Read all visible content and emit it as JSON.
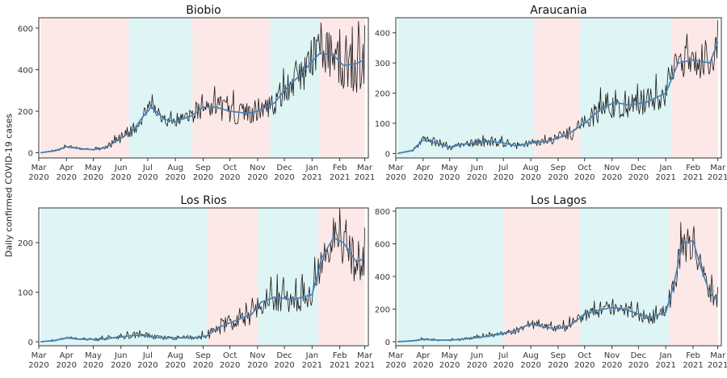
{
  "figure": {
    "ylabel": "Daily confirmed COVID-19 cases",
    "colors": {
      "pink": "#fde8e8",
      "cyan": "#def4f5",
      "raw": "#1a1a1a",
      "smooth": "#4682b4",
      "frame": "#333333"
    }
  },
  "chart_data": [
    {
      "type": "line",
      "title": "Biobio",
      "ylim": [
        -25,
        650
      ],
      "yticks": [
        0,
        200,
        400,
        600
      ],
      "xlim": [
        "2020-03-01",
        "2021-03-05"
      ],
      "xticks": [
        {
          "date": "2020-03-01",
          "label": "Mar\n2020"
        },
        {
          "date": "2020-04-01",
          "label": "Apr\n2020"
        },
        {
          "date": "2020-05-01",
          "label": "May\n2020"
        },
        {
          "date": "2020-06-01",
          "label": "Jun\n2020"
        },
        {
          "date": "2020-07-01",
          "label": "Jul\n2020"
        },
        {
          "date": "2020-08-01",
          "label": "Aug\n2020"
        },
        {
          "date": "2020-09-01",
          "label": "Sep\n2020"
        },
        {
          "date": "2020-10-01",
          "label": "Oct\n2020"
        },
        {
          "date": "2020-11-01",
          "label": "Nov\n2020"
        },
        {
          "date": "2020-12-01",
          "label": "Dec\n2020"
        },
        {
          "date": "2021-01-01",
          "label": "Jan\n2021"
        },
        {
          "date": "2021-02-01",
          "label": "Feb\n2021"
        },
        {
          "date": "2021-03-01",
          "label": "Mar\n2021"
        }
      ],
      "bands": [
        {
          "start": "2020-03-03",
          "end": "2020-06-10",
          "color": "pink"
        },
        {
          "start": "2020-06-10",
          "end": "2020-08-20",
          "color": "cyan"
        },
        {
          "start": "2020-08-20",
          "end": "2020-11-15",
          "color": "pink"
        },
        {
          "start": "2020-11-15",
          "end": "2021-01-10",
          "color": "cyan"
        },
        {
          "start": "2021-01-10",
          "end": "2021-03-01",
          "color": "pink"
        }
      ],
      "series": [
        {
          "smoothed": true,
          "x": [
            "2020-03-03",
            "2020-03-20",
            "2020-04-01",
            "2020-04-15",
            "2020-05-01",
            "2020-05-15",
            "2020-06-01",
            "2020-06-15",
            "2020-06-25",
            "2020-07-05",
            "2020-07-20",
            "2020-08-01",
            "2020-08-20",
            "2020-09-01",
            "2020-09-15",
            "2020-10-01",
            "2020-10-20",
            "2020-11-01",
            "2020-11-20",
            "2020-12-01",
            "2020-12-20",
            "2021-01-01",
            "2021-01-10",
            "2021-01-25",
            "2021-02-05",
            "2021-02-20",
            "2021-03-01"
          ],
          "y": [
            0,
            10,
            30,
            20,
            15,
            25,
            70,
            110,
            170,
            220,
            160,
            150,
            180,
            220,
            220,
            200,
            190,
            200,
            240,
            300,
            380,
            440,
            480,
            470,
            420,
            430,
            450
          ],
          "noise": [
            0,
            5,
            8,
            6,
            5,
            10,
            25,
            30,
            40,
            40,
            35,
            30,
            35,
            60,
            70,
            60,
            55,
            55,
            60,
            80,
            90,
            110,
            110,
            110,
            120,
            140,
            140
          ]
        }
      ]
    },
    {
      "type": "line",
      "title": "Araucania",
      "ylim": [
        -15,
        450
      ],
      "yticks": [
        0,
        100,
        200,
        300,
        400
      ],
      "xlim": [
        "2020-03-01",
        "2021-03-05"
      ],
      "xticks": [
        {
          "date": "2020-03-01",
          "label": "Mar\n2020"
        },
        {
          "date": "2020-04-01",
          "label": "Apr\n2020"
        },
        {
          "date": "2020-05-01",
          "label": "May\n2020"
        },
        {
          "date": "2020-06-01",
          "label": "Jun\n2020"
        },
        {
          "date": "2020-07-01",
          "label": "Jul\n2020"
        },
        {
          "date": "2020-08-01",
          "label": "Aug\n2020"
        },
        {
          "date": "2020-09-01",
          "label": "Sep\n2020"
        },
        {
          "date": "2020-10-01",
          "label": "Oct\n2020"
        },
        {
          "date": "2020-11-01",
          "label": "Nov\n2020"
        },
        {
          "date": "2020-12-01",
          "label": "Dec\n2020"
        },
        {
          "date": "2021-01-01",
          "label": "Jan\n2021"
        },
        {
          "date": "2021-02-01",
          "label": "Feb\n2021"
        },
        {
          "date": "2021-03-01",
          "label": "Mar\n2021"
        }
      ],
      "bands": [
        {
          "start": "2020-03-03",
          "end": "2020-08-05",
          "color": "cyan"
        },
        {
          "start": "2020-08-05",
          "end": "2020-09-25",
          "color": "pink"
        },
        {
          "start": "2020-09-25",
          "end": "2021-01-07",
          "color": "cyan"
        },
        {
          "start": "2021-01-07",
          "end": "2021-03-01",
          "color": "pink"
        }
      ],
      "series": [
        {
          "smoothed": true,
          "x": [
            "2020-03-03",
            "2020-03-20",
            "2020-04-01",
            "2020-04-15",
            "2020-05-01",
            "2020-05-15",
            "2020-06-01",
            "2020-06-15",
            "2020-07-01",
            "2020-07-15",
            "2020-08-01",
            "2020-08-20",
            "2020-09-10",
            "2020-10-01",
            "2020-10-20",
            "2020-11-05",
            "2020-11-20",
            "2020-12-10",
            "2021-01-01",
            "2021-01-15",
            "2021-02-01",
            "2021-02-20",
            "2021-03-01"
          ],
          "y": [
            0,
            10,
            45,
            35,
            20,
            30,
            35,
            40,
            35,
            25,
            35,
            40,
            60,
            100,
            150,
            170,
            160,
            170,
            200,
            300,
            310,
            300,
            370
          ],
          "noise": [
            0,
            5,
            12,
            12,
            10,
            12,
            15,
            18,
            15,
            12,
            10,
            15,
            25,
            35,
            45,
            50,
            45,
            45,
            50,
            60,
            60,
            70,
            60
          ]
        }
      ]
    },
    {
      "type": "line",
      "title": "Los Rios",
      "ylim": [
        -8,
        270
      ],
      "yticks": [
        0,
        100,
        200
      ],
      "xlim": [
        "2020-03-01",
        "2021-03-05"
      ],
      "xticks": [
        {
          "date": "2020-03-01",
          "label": "Mar\n2020"
        },
        {
          "date": "2020-04-01",
          "label": "Apr\n2020"
        },
        {
          "date": "2020-05-01",
          "label": "May\n2020"
        },
        {
          "date": "2020-06-01",
          "label": "Jun\n2020"
        },
        {
          "date": "2020-07-01",
          "label": "Jul\n2020"
        },
        {
          "date": "2020-08-01",
          "label": "Aug\n2020"
        },
        {
          "date": "2020-09-01",
          "label": "Sep\n2020"
        },
        {
          "date": "2020-10-01",
          "label": "Oct\n2020"
        },
        {
          "date": "2020-11-01",
          "label": "Nov\n2020"
        },
        {
          "date": "2020-12-01",
          "label": "Dec\n2020"
        },
        {
          "date": "2021-01-01",
          "label": "Jan\n2021"
        },
        {
          "date": "2021-02-01",
          "label": "Feb\n2021"
        },
        {
          "date": "2021-03-01",
          "label": "Mar\n2021"
        }
      ],
      "bands": [
        {
          "start": "2020-03-03",
          "end": "2020-09-05",
          "color": "cyan"
        },
        {
          "start": "2020-09-05",
          "end": "2020-11-01",
          "color": "pink"
        },
        {
          "start": "2020-11-01",
          "end": "2021-01-08",
          "color": "cyan"
        },
        {
          "start": "2021-01-08",
          "end": "2021-03-01",
          "color": "pink"
        }
      ],
      "series": [
        {
          "smoothed": true,
          "x": [
            "2020-03-03",
            "2020-03-20",
            "2020-04-01",
            "2020-04-15",
            "2020-05-01",
            "2020-05-15",
            "2020-06-01",
            "2020-06-15",
            "2020-07-01",
            "2020-07-15",
            "2020-08-01",
            "2020-08-20",
            "2020-09-05",
            "2020-09-20",
            "2020-10-10",
            "2020-10-25",
            "2020-11-05",
            "2020-11-20",
            "2020-12-10",
            "2021-01-01",
            "2021-01-12",
            "2021-01-25",
            "2021-02-05",
            "2021-02-20",
            "2021-03-01"
          ],
          "y": [
            0,
            3,
            8,
            5,
            5,
            6,
            10,
            13,
            12,
            8,
            8,
            8,
            12,
            30,
            45,
            55,
            80,
            90,
            85,
            95,
            170,
            210,
            200,
            160,
            170
          ],
          "noise": [
            0,
            2,
            3,
            3,
            3,
            4,
            5,
            7,
            6,
            4,
            4,
            5,
            8,
            15,
            20,
            22,
            25,
            28,
            28,
            35,
            40,
            45,
            45,
            50,
            50
          ]
        }
      ]
    },
    {
      "type": "line",
      "title": "Los Lagos",
      "ylim": [
        -25,
        820
      ],
      "yticks": [
        0,
        200,
        400,
        600,
        800
      ],
      "xlim": [
        "2020-03-01",
        "2021-03-05"
      ],
      "xticks": [
        {
          "date": "2020-03-01",
          "label": "Mar\n2020"
        },
        {
          "date": "2020-04-01",
          "label": "Apr\n2020"
        },
        {
          "date": "2020-05-01",
          "label": "May\n2020"
        },
        {
          "date": "2020-06-01",
          "label": "Jun\n2020"
        },
        {
          "date": "2020-07-01",
          "label": "Jul\n2020"
        },
        {
          "date": "2020-08-01",
          "label": "Aug\n2020"
        },
        {
          "date": "2020-09-01",
          "label": "Sep\n2020"
        },
        {
          "date": "2020-10-01",
          "label": "Oct\n2020"
        },
        {
          "date": "2020-11-01",
          "label": "Nov\n2020"
        },
        {
          "date": "2020-12-01",
          "label": "Dec\n2020"
        },
        {
          "date": "2021-01-01",
          "label": "Jan\n2021"
        },
        {
          "date": "2021-02-01",
          "label": "Feb\n2021"
        },
        {
          "date": "2021-03-01",
          "label": "Mar\n2021"
        }
      ],
      "bands": [
        {
          "start": "2020-03-03",
          "end": "2020-07-01",
          "color": "cyan"
        },
        {
          "start": "2020-07-01",
          "end": "2020-09-25",
          "color": "pink"
        },
        {
          "start": "2020-09-25",
          "end": "2021-01-05",
          "color": "cyan"
        },
        {
          "start": "2021-01-05",
          "end": "2021-03-01",
          "color": "pink"
        }
      ],
      "series": [
        {
          "smoothed": true,
          "x": [
            "2020-03-03",
            "2020-03-20",
            "2020-04-01",
            "2020-04-15",
            "2020-05-01",
            "2020-05-15",
            "2020-06-01",
            "2020-06-15",
            "2020-07-01",
            "2020-07-15",
            "2020-08-01",
            "2020-08-15",
            "2020-09-01",
            "2020-09-15",
            "2020-10-01",
            "2020-10-15",
            "2020-11-01",
            "2020-11-15",
            "2020-12-01",
            "2020-12-15",
            "2021-01-01",
            "2021-01-10",
            "2021-01-20",
            "2021-02-01",
            "2021-02-10",
            "2021-02-20",
            "2021-03-01"
          ],
          "y": [
            0,
            5,
            15,
            10,
            10,
            15,
            25,
            35,
            50,
            70,
            110,
            90,
            80,
            100,
            170,
            190,
            210,
            200,
            170,
            150,
            180,
            350,
            600,
            620,
            450,
            300,
            250
          ],
          "noise": [
            0,
            4,
            8,
            6,
            6,
            8,
            10,
            14,
            18,
            22,
            28,
            25,
            25,
            35,
            45,
            50,
            50,
            45,
            45,
            45,
            50,
            80,
            120,
            120,
            100,
            80,
            70
          ]
        }
      ]
    }
  ]
}
